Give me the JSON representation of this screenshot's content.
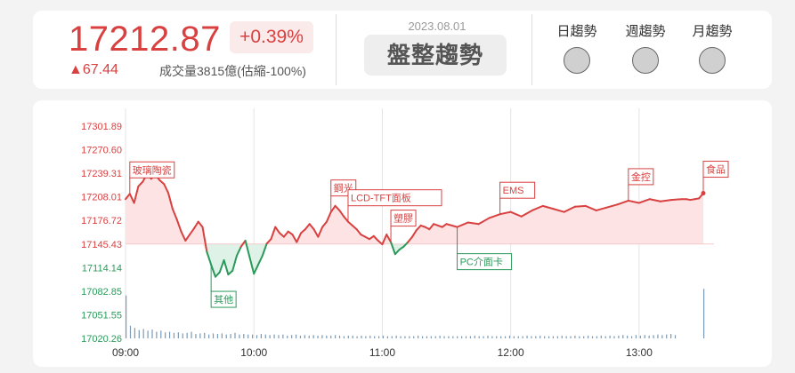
{
  "header": {
    "index_value": "17212.87",
    "change_percent": "+0.39%",
    "change_points": "▲67.44",
    "volume_text": "成交量3815億(估縮-100%)",
    "date": "2023.08.01",
    "market_trend": "盤整趨勢",
    "trend_indicators": [
      {
        "label": "日趨勢",
        "status_color": "#d0d0d0"
      },
      {
        "label": "週趨勢",
        "status_color": "#d0d0d0"
      },
      {
        "label": "月趨勢",
        "status_color": "#d0d0d0"
      }
    ]
  },
  "colors": {
    "up": "#d94040",
    "down": "#2a9a5a",
    "volume": "#7a9ab5"
  },
  "chart_data": {
    "type": "line",
    "reference_price": 17145.43,
    "ylim": [
      17020.26,
      17301.89
    ],
    "y_ticks": [
      "17301.89",
      "17270.60",
      "17239.31",
      "17208.01",
      "17176.72",
      "17145.43",
      "17114.14",
      "17082.85",
      "17051.55",
      "17020.26"
    ],
    "x_ticks": [
      "09:00",
      "10:00",
      "11:00",
      "12:00",
      "13:00"
    ],
    "xlim_minutes": [
      0,
      275
    ],
    "series": [
      {
        "x": [
          0,
          2,
          4,
          6,
          8,
          10,
          12,
          14,
          16,
          18,
          20,
          22,
          24,
          26,
          28,
          30,
          32,
          34,
          36,
          38,
          40,
          42,
          44,
          46,
          48,
          50,
          52,
          54,
          56,
          58,
          60,
          62,
          64,
          66,
          68,
          70,
          72,
          74,
          76,
          78,
          80,
          82,
          84,
          86,
          88,
          90,
          92,
          94,
          96,
          98,
          100,
          102,
          104,
          106,
          108,
          110,
          112,
          114,
          116,
          118,
          120,
          122,
          124,
          126,
          128,
          130,
          132,
          134,
          136,
          138,
          140,
          142,
          144,
          146,
          148,
          150,
          155,
          160,
          165,
          170,
          175,
          180,
          185,
          190,
          195,
          200,
          205,
          210,
          215,
          220,
          225,
          230,
          235,
          240,
          245,
          250,
          255,
          260,
          262,
          264,
          266,
          268,
          270
        ],
        "values": [
          17205,
          17212,
          17200,
          17222,
          17228,
          17238,
          17232,
          17237,
          17230,
          17225,
          17213,
          17192,
          17178,
          17162,
          17150,
          17158,
          17166,
          17175,
          17168,
          17135,
          17118,
          17102,
          17108,
          17124,
          17105,
          17110,
          17130,
          17142,
          17150,
          17128,
          17106,
          17118,
          17130,
          17146,
          17152,
          17168,
          17160,
          17155,
          17162,
          17158,
          17148,
          17160,
          17165,
          17172,
          17165,
          17155,
          17168,
          17175,
          17188,
          17196,
          17190,
          17182,
          17175,
          17170,
          17165,
          17158,
          17155,
          17152,
          17156,
          17150,
          17145,
          17158,
          17148,
          17132,
          17138,
          17142,
          17148,
          17155,
          17164,
          17170,
          17168,
          17165,
          17172,
          17170,
          17168,
          17172,
          17168,
          17174,
          17172,
          17180,
          17185,
          17188,
          17182,
          17190,
          17196,
          17192,
          17188,
          17195,
          17196,
          17190,
          17194,
          17198,
          17203,
          17200,
          17205,
          17202,
          17204,
          17205,
          17205,
          17204,
          17205,
          17206,
          17212.87
        ]
      }
    ],
    "annotations": [
      {
        "label": "玻璃陶瓷",
        "x": 2,
        "kind": "up"
      },
      {
        "label": "其他",
        "x": 40,
        "kind": "down"
      },
      {
        "label": "鋼光",
        "x": 96,
        "kind": "up"
      },
      {
        "label": "LCD-TFT面板",
        "x": 104,
        "kind": "up"
      },
      {
        "label": "塑膠",
        "x": 124,
        "kind": "up"
      },
      {
        "label": "PC介面卡",
        "x": 155,
        "kind": "down"
      },
      {
        "label": "EMS",
        "x": 175,
        "kind": "up"
      },
      {
        "label": "金控",
        "x": 235,
        "kind": "up"
      },
      {
        "label": "食品",
        "x": 270,
        "kind": "up"
      }
    ],
    "volume": {
      "values": [
        0.78,
        0.23,
        0.19,
        0.15,
        0.17,
        0.14,
        0.16,
        0.12,
        0.14,
        0.11,
        0.12,
        0.1,
        0.11,
        0.09,
        0.1,
        0.12,
        0.08,
        0.09,
        0.1,
        0.07,
        0.09,
        0.08,
        0.09,
        0.07,
        0.08,
        0.1,
        0.07,
        0.08,
        0.07,
        0.07,
        0.06,
        0.08,
        0.07,
        0.06,
        0.07,
        0.06,
        0.07,
        0.05,
        0.06,
        0.07,
        0.05,
        0.06,
        0.05,
        0.06,
        0.05,
        0.06,
        0.05,
        0.05,
        0.06,
        0.05,
        0.04,
        0.05,
        0.05,
        0.04,
        0.05,
        0.04,
        0.05,
        0.04,
        0.04,
        0.05,
        0.04,
        0.04,
        0.05,
        0.04,
        0.04,
        0.04,
        0.04,
        0.05,
        0.04,
        0.04,
        0.04,
        0.04,
        0.05,
        0.04,
        0.04,
        0.04,
        0.04,
        0.04,
        0.04,
        0.04,
        0.05,
        0.04,
        0.04,
        0.05,
        0.04,
        0.04,
        0.04,
        0.04,
        0.05,
        0.04,
        0.04,
        0.04,
        0.05,
        0.04,
        0.04,
        0.05,
        0.04,
        0.04,
        0.04,
        0.04,
        0.05,
        0.04,
        0.04,
        0.05,
        0.04,
        0.04,
        0.05,
        0.04,
        0.04,
        0.05,
        0.04,
        0.05,
        0.04,
        0.05,
        0.06,
        0.05,
        0.04,
        0.06,
        0.05,
        0.06,
        0.05,
        0.06,
        0.07,
        0.06,
        0.07,
        0.08,
        0.06,
        0.9
      ]
    }
  }
}
